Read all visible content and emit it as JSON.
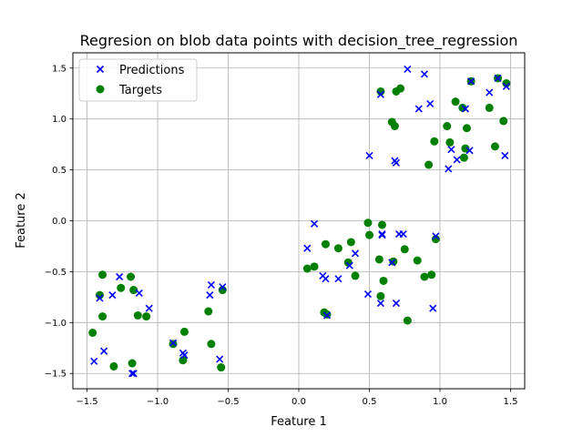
{
  "chart_data": {
    "type": "scatter",
    "title": "Regresion on blob data points with decision_tree_regression",
    "xlabel": "Feature 1",
    "ylabel": "Feature 2",
    "xlim": [
      -1.6,
      1.6
    ],
    "ylim": [
      -1.65,
      1.65
    ],
    "xticks": [
      -1.5,
      -1.0,
      -0.5,
      0.0,
      0.5,
      1.0,
      1.5
    ],
    "xtick_labels": [
      "−1.5",
      "−1.0",
      "−0.5",
      "0.0",
      "0.5",
      "1.0",
      "1.5"
    ],
    "yticks": [
      -1.5,
      -1.0,
      -0.5,
      0.0,
      0.5,
      1.0,
      1.5
    ],
    "ytick_labels": [
      "−1.5",
      "−1.0",
      "−0.5",
      "0.0",
      "0.5",
      "1.0",
      "1.5"
    ],
    "grid": true,
    "legend": "upper-left",
    "series": [
      {
        "name": "Predictions",
        "marker": "x",
        "color": "#0000ff",
        "points": [
          [
            -1.45,
            -1.38
          ],
          [
            -1.41,
            -0.76
          ],
          [
            -1.38,
            -1.28
          ],
          [
            -1.32,
            -0.73
          ],
          [
            -1.27,
            -0.55
          ],
          [
            -1.18,
            -1.5
          ],
          [
            -1.17,
            -1.5
          ],
          [
            -1.13,
            -0.71
          ],
          [
            -1.06,
            -0.86
          ],
          [
            -0.89,
            -1.2
          ],
          [
            -0.82,
            -1.3
          ],
          [
            -0.81,
            -1.32
          ],
          [
            -0.63,
            -0.73
          ],
          [
            -0.62,
            -0.63
          ],
          [
            -0.56,
            -1.36
          ],
          [
            -0.54,
            -0.65
          ],
          [
            0.06,
            -0.27
          ],
          [
            0.11,
            -0.03
          ],
          [
            0.17,
            -0.54
          ],
          [
            0.19,
            -0.57
          ],
          [
            0.2,
            -0.93
          ],
          [
            0.28,
            -0.57
          ],
          [
            0.36,
            -0.44
          ],
          [
            0.4,
            -0.32
          ],
          [
            0.49,
            -0.72
          ],
          [
            0.5,
            0.64
          ],
          [
            0.58,
            -0.81
          ],
          [
            0.58,
            1.24
          ],
          [
            0.59,
            -0.13
          ],
          [
            0.59,
            -0.14
          ],
          [
            0.66,
            -0.41
          ],
          [
            0.68,
            0.59
          ],
          [
            0.69,
            -0.81
          ],
          [
            0.69,
            0.57
          ],
          [
            0.71,
            -0.13
          ],
          [
            0.74,
            -0.13
          ],
          [
            0.77,
            1.49
          ],
          [
            0.85,
            1.1
          ],
          [
            0.89,
            1.44
          ],
          [
            0.93,
            1.15
          ],
          [
            0.95,
            -0.86
          ],
          [
            0.97,
            -0.15
          ],
          [
            1.06,
            0.51
          ],
          [
            1.08,
            0.7
          ],
          [
            1.12,
            0.6
          ],
          [
            1.18,
            1.1
          ],
          [
            1.21,
            0.69
          ],
          [
            1.22,
            1.37
          ],
          [
            1.35,
            1.26
          ],
          [
            1.41,
            1.4
          ],
          [
            1.46,
            0.64
          ],
          [
            1.47,
            1.32
          ]
        ]
      },
      {
        "name": "Targets",
        "marker": "o",
        "color": "#008000",
        "points": [
          [
            -1.46,
            -1.1
          ],
          [
            -1.41,
            -0.73
          ],
          [
            -1.39,
            -0.53
          ],
          [
            -1.39,
            -0.94
          ],
          [
            -1.31,
            -1.43
          ],
          [
            -1.26,
            -0.66
          ],
          [
            -1.19,
            -0.55
          ],
          [
            -1.18,
            -1.4
          ],
          [
            -1.17,
            -0.68
          ],
          [
            -1.14,
            -0.93
          ],
          [
            -1.08,
            -0.94
          ],
          [
            -0.89,
            -1.21
          ],
          [
            -0.82,
            -1.37
          ],
          [
            -0.81,
            -1.09
          ],
          [
            -0.64,
            -0.89
          ],
          [
            -0.62,
            -1.21
          ],
          [
            -0.55,
            -1.44
          ],
          [
            -0.54,
            -0.68
          ],
          [
            0.06,
            -0.47
          ],
          [
            0.11,
            -0.45
          ],
          [
            0.18,
            -0.9
          ],
          [
            0.19,
            -0.23
          ],
          [
            0.2,
            -0.92
          ],
          [
            0.28,
            -0.27
          ],
          [
            0.35,
            -0.41
          ],
          [
            0.37,
            -0.21
          ],
          [
            0.4,
            -0.54
          ],
          [
            0.49,
            -0.02
          ],
          [
            0.5,
            -0.14
          ],
          [
            0.57,
            -0.38
          ],
          [
            0.58,
            -0.74
          ],
          [
            0.58,
            1.27
          ],
          [
            0.59,
            -0.04
          ],
          [
            0.6,
            -0.59
          ],
          [
            0.66,
            0.97
          ],
          [
            0.67,
            -0.4
          ],
          [
            0.68,
            0.93
          ],
          [
            0.69,
            1.27
          ],
          [
            0.72,
            1.3
          ],
          [
            0.75,
            -0.28
          ],
          [
            0.77,
            -0.98
          ],
          [
            0.84,
            -0.39
          ],
          [
            0.89,
            -0.55
          ],
          [
            0.92,
            0.55
          ],
          [
            0.94,
            -0.53
          ],
          [
            0.96,
            0.78
          ],
          [
            0.97,
            -0.18
          ],
          [
            1.05,
            0.93
          ],
          [
            1.07,
            0.77
          ],
          [
            1.11,
            1.17
          ],
          [
            1.16,
            1.11
          ],
          [
            1.17,
            0.62
          ],
          [
            1.18,
            0.71
          ],
          [
            1.19,
            0.91
          ],
          [
            1.22,
            1.37
          ],
          [
            1.35,
            1.11
          ],
          [
            1.39,
            0.73
          ],
          [
            1.41,
            1.4
          ],
          [
            1.45,
            0.98
          ],
          [
            1.47,
            1.35
          ]
        ]
      }
    ]
  }
}
